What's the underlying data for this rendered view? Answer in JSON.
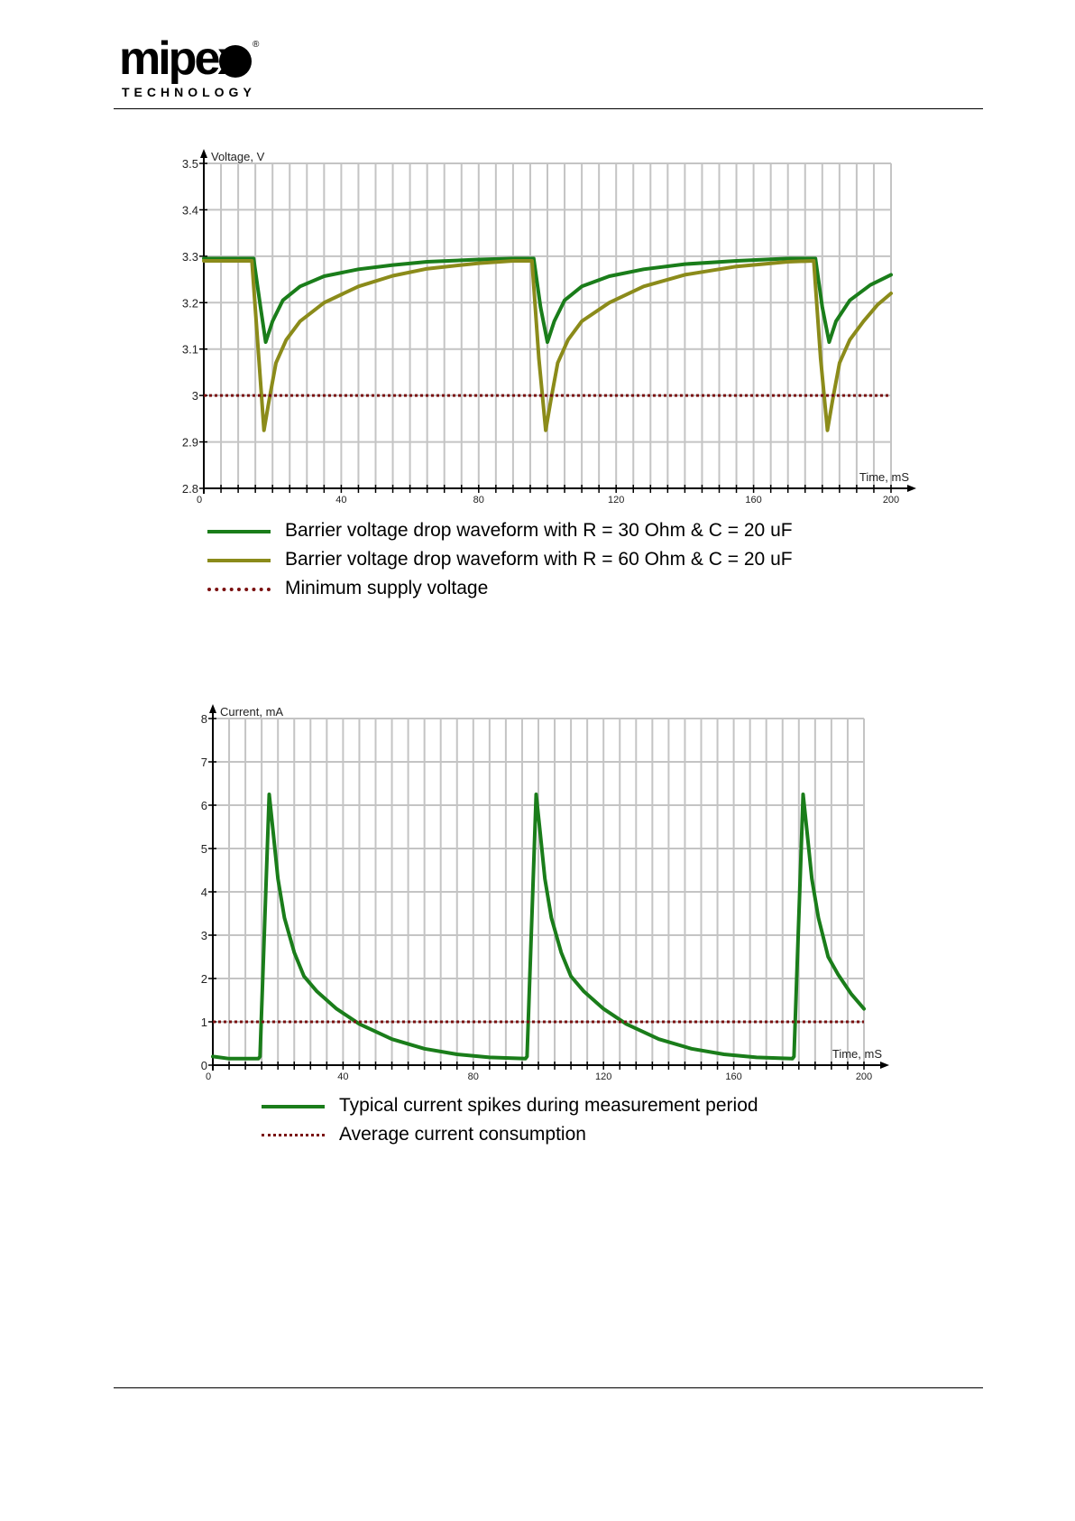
{
  "brand": {
    "logo_text": "mipex",
    "logo_subtext": "TECHNOLOGY",
    "logo_mark": "®"
  },
  "colors": {
    "dark_green": "#1a7d1a",
    "olive": "#8b8b1a",
    "dark_red": "#7a1010",
    "grid": "#c4c4c4"
  },
  "chart_data": [
    {
      "type": "line",
      "ylabel": "Voltage, V",
      "xlabel": "Time, mS",
      "xlim": [
        0,
        200
      ],
      "ylim": [
        2.8,
        3.5
      ],
      "x_ticks": [
        "0",
        "40",
        "80",
        "120",
        "160",
        "200"
      ],
      "y_ticks": [
        "2.8",
        "2.9",
        "3",
        "3.1",
        "3.2",
        "3.3",
        "3.4",
        "3.5"
      ],
      "grid": true,
      "series": [
        {
          "name": "Barrier voltage drop waveform with R = 30 Ohm & C = 20 uF",
          "color": "#1a7d1a",
          "style": "solid",
          "x": [
            0,
            14.5,
            16.5,
            18,
            20,
            23,
            28,
            35,
            45,
            55,
            65,
            80,
            90,
            96,
            98,
            100,
            102,
            105,
            110,
            118,
            128,
            140,
            155,
            170,
            178,
            180,
            182,
            184,
            188,
            194,
            200
          ],
          "y": [
            3.295,
            3.295,
            3.19,
            3.115,
            3.16,
            3.205,
            3.235,
            3.257,
            3.272,
            3.281,
            3.288,
            3.293,
            3.295,
            3.295,
            3.19,
            3.115,
            3.16,
            3.205,
            3.235,
            3.257,
            3.272,
            3.283,
            3.29,
            3.295,
            3.295,
            3.19,
            3.115,
            3.16,
            3.205,
            3.238,
            3.26
          ]
        },
        {
          "name": "Barrier voltage drop waveform with R = 60 Ohm & C = 20 uF",
          "color": "#8b8b1a",
          "style": "solid",
          "x": [
            0,
            14,
            16,
            17.5,
            19,
            21,
            24,
            28,
            35,
            45,
            55,
            65,
            80,
            90,
            95.5,
            97.5,
            99.5,
            101,
            103,
            106,
            110,
            118,
            128,
            140,
            155,
            170,
            177.5,
            179.5,
            181.5,
            183,
            185,
            188,
            192,
            196,
            200
          ],
          "y": [
            3.29,
            3.29,
            3.08,
            2.925,
            2.99,
            3.07,
            3.12,
            3.16,
            3.2,
            3.235,
            3.258,
            3.273,
            3.285,
            3.29,
            3.29,
            3.08,
            2.925,
            2.99,
            3.07,
            3.12,
            3.16,
            3.2,
            3.235,
            3.26,
            3.278,
            3.288,
            3.29,
            3.08,
            2.925,
            2.99,
            3.07,
            3.12,
            3.16,
            3.195,
            3.22
          ]
        },
        {
          "name": "Minimum supply voltage",
          "color": "#7a1010",
          "style": "dotted",
          "x": [
            0,
            200
          ],
          "y": [
            3.0,
            3.0
          ]
        }
      ]
    },
    {
      "type": "line",
      "ylabel": "Current, mA",
      "xlabel": "Time, mS",
      "xlim": [
        0,
        200
      ],
      "ylim": [
        0,
        8
      ],
      "x_ticks": [
        "0",
        "40",
        "80",
        "120",
        "160",
        "200"
      ],
      "y_ticks": [
        "0",
        "1",
        "2",
        "3",
        "4",
        "5",
        "6",
        "7",
        "8"
      ],
      "grid": true,
      "series": [
        {
          "name": "Typical current spikes during measurement period",
          "color": "#1a7d1a",
          "style": "solid",
          "x": [
            0,
            5,
            14,
            14.5,
            17.3,
            18.5,
            20,
            22,
            25,
            28,
            32,
            38,
            45,
            55,
            65,
            75,
            85,
            96,
            96.5,
            99.3,
            100.5,
            102,
            104,
            107,
            110,
            114,
            120,
            127,
            137,
            147,
            157,
            167,
            178,
            178.5,
            181.3,
            182.5,
            184,
            186,
            189,
            192,
            196,
            200
          ],
          "y": [
            0.2,
            0.15,
            0.15,
            0.2,
            6.25,
            5.4,
            4.3,
            3.4,
            2.6,
            2.05,
            1.7,
            1.3,
            0.95,
            0.6,
            0.38,
            0.25,
            0.18,
            0.15,
            0.2,
            6.25,
            5.4,
            4.3,
            3.4,
            2.6,
            2.05,
            1.7,
            1.3,
            0.95,
            0.6,
            0.38,
            0.25,
            0.18,
            0.15,
            0.2,
            6.25,
            5.4,
            4.3,
            3.4,
            2.5,
            2.1,
            1.65,
            1.3
          ]
        },
        {
          "name": "Average current consumption",
          "color": "#7a1010",
          "style": "dotted",
          "x": [
            0,
            200
          ],
          "y": [
            1.0,
            1.0
          ]
        }
      ]
    }
  ]
}
